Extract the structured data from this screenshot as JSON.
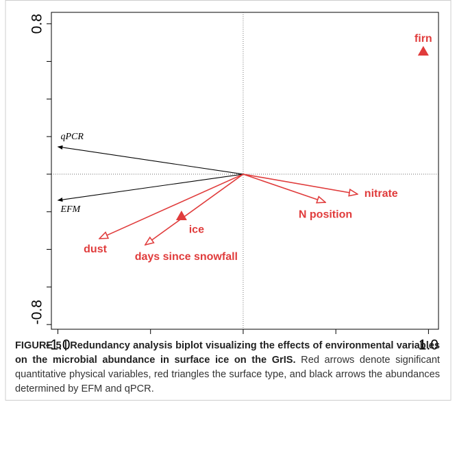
{
  "chart_data": {
    "type": "biplot",
    "xlim": [
      -1.035,
      1.054
    ],
    "ylim": [
      -0.825,
      0.861
    ],
    "xticks": [
      {
        "value": -1,
        "label": "-1.0"
      },
      {
        "value": 1,
        "label": "1.0"
      }
    ],
    "xminorticks": [
      -0.5,
      0,
      0.5
    ],
    "yticks": [
      {
        "value": -0.8,
        "label": "-0.8"
      },
      {
        "value": 0.8,
        "label": "0.8"
      }
    ],
    "yminorticks": [
      -0.6,
      -0.4,
      -0.2,
      0,
      0.2,
      0.4,
      0.6
    ],
    "vectors": [
      {
        "label": "qPCR",
        "x": -1.0,
        "y": 0.146,
        "color": "#000000"
      },
      {
        "label": "EFM",
        "x": -1.0,
        "y": -0.139,
        "color": "#000000"
      },
      {
        "label": "dust",
        "x": -0.776,
        "y": -0.343,
        "color": "#e03c3c"
      },
      {
        "label": "days since snowfall",
        "x": -0.529,
        "y": -0.376,
        "color": "#e03c3c"
      },
      {
        "label": "N position",
        "x": 0.444,
        "y": -0.15,
        "color": "#e03c3c"
      },
      {
        "label": "nitrate",
        "x": 0.617,
        "y": -0.106,
        "color": "#e03c3c"
      }
    ],
    "points": [
      {
        "label": "firn",
        "x": 0.972,
        "y": 0.653,
        "color": "#e03c3c"
      },
      {
        "label": "ice",
        "x": -0.333,
        "y": -0.223,
        "color": "#e03c3c"
      }
    ]
  },
  "caption": {
    "label": "FIGURE 5 |",
    "bold": "Redundancy analysis biplot visualizing the effects of environmental variables on the microbial abundance in surface ice on the GrIS.",
    "text": "Red arrows denote significant quantitative physical variables, red triangles the surface type, and black arrows the abundances determined by EFM and qPCR."
  }
}
